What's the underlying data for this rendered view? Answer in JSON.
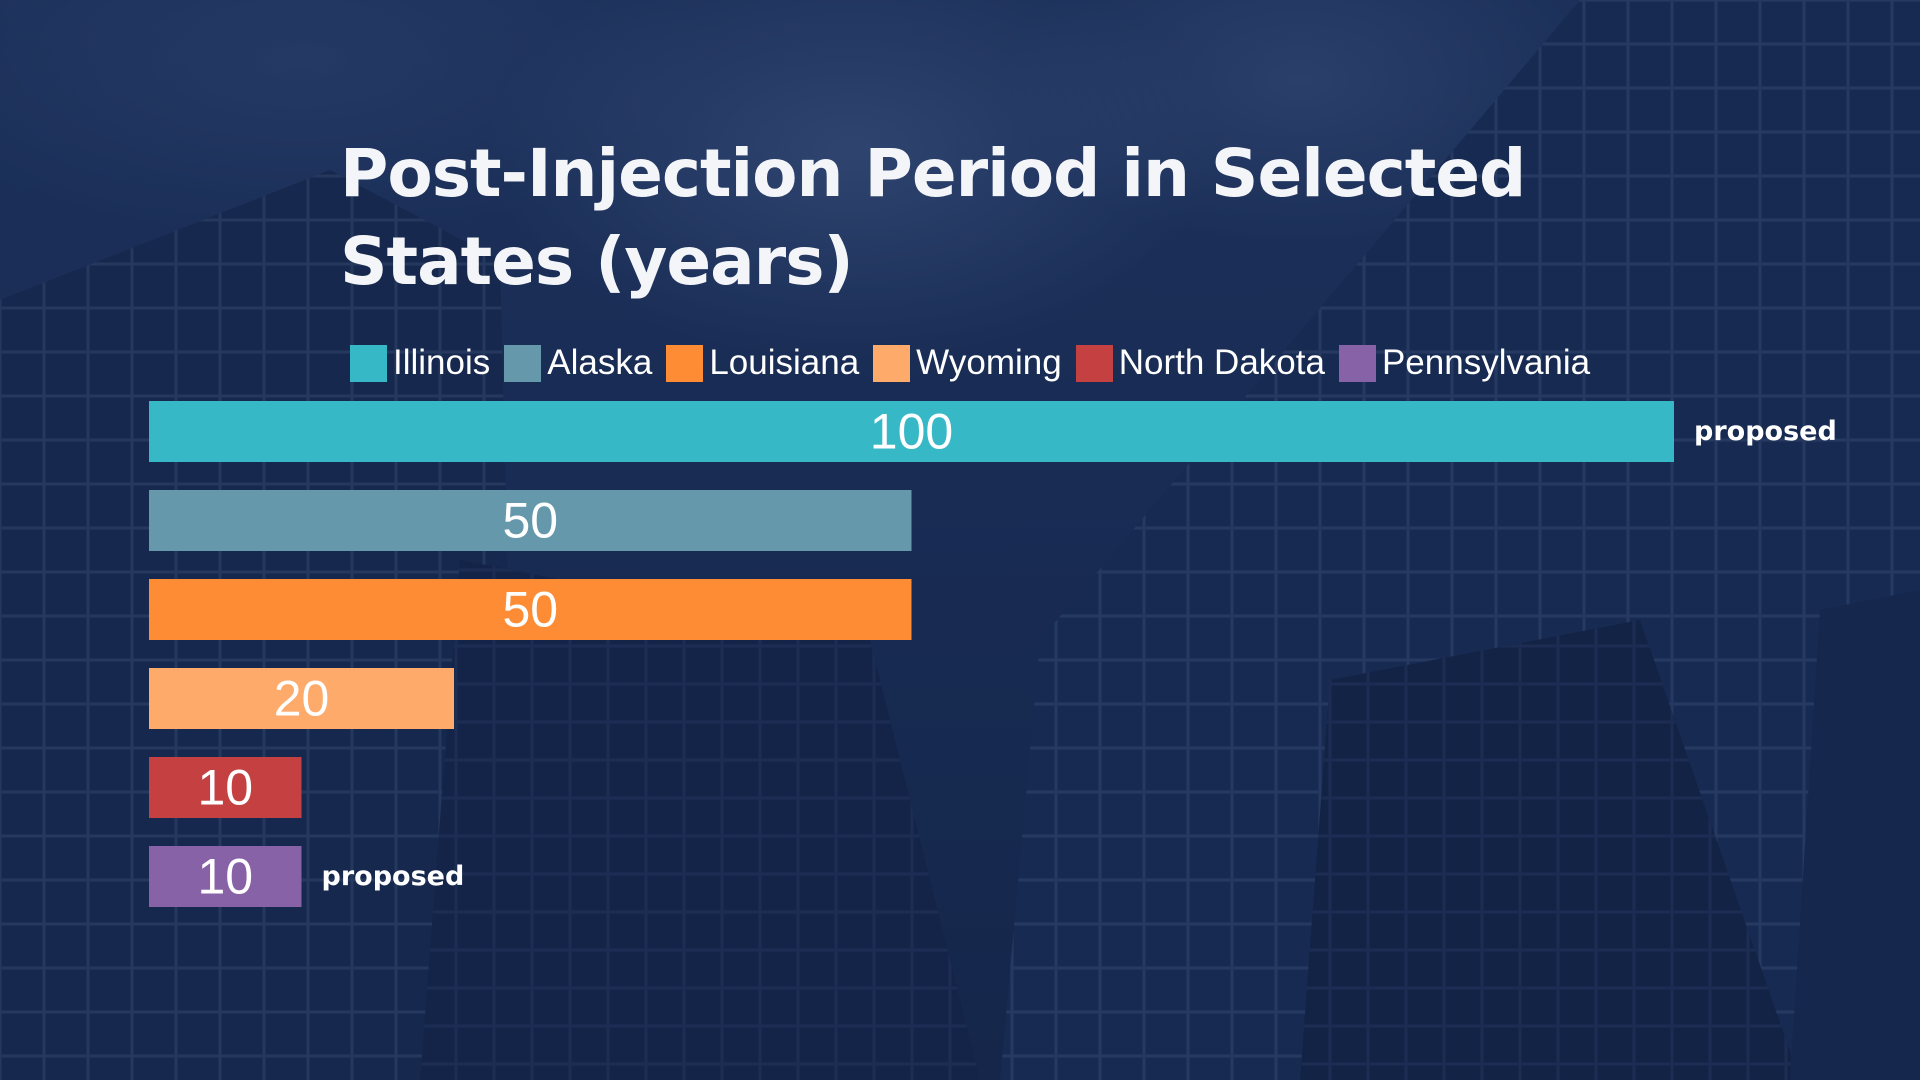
{
  "colors": {
    "background": "#1d335d",
    "text": "#ffffff"
  },
  "chart_data": {
    "type": "bar",
    "orientation": "horizontal",
    "title": "Post-Injection Period in Selected States (years)",
    "xlabel": "",
    "ylabel": "",
    "xlim": [
      0,
      100
    ],
    "grid": false,
    "legend": "top",
    "categories": [
      "Illinois",
      "Alaska",
      "Louisiana",
      "Wyoming",
      "North Dakota",
      "Pennsylvania"
    ],
    "values": [
      100,
      50,
      50,
      20,
      10,
      10
    ],
    "colors": [
      "#36b8c6",
      "#6598ab",
      "#fd8c34",
      "#fdaa6a",
      "#c54040",
      "#8862a6"
    ],
    "notes": [
      "proposed",
      "",
      "",
      "",
      "",
      "proposed"
    ]
  }
}
